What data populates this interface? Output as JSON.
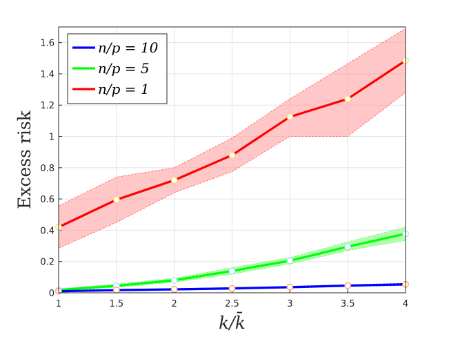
{
  "chart_data": {
    "type": "line",
    "xlabel": "k/k̄",
    "ylabel": "Excess risk",
    "xlim": [
      1,
      4
    ],
    "ylim": [
      0,
      1.7
    ],
    "xticks": [
      "1",
      "1.5",
      "2",
      "2.5",
      "3",
      "3.5",
      "4"
    ],
    "yticks": [
      "0",
      "0.2",
      "0.4",
      "0.6",
      "0.8",
      "1",
      "1.2",
      "1.4",
      "1.6"
    ],
    "grid": true,
    "legend_position": "top-left",
    "x": [
      1,
      1.5,
      2,
      2.5,
      3,
      3.5,
      4
    ],
    "series": [
      {
        "name": "n/p = 10",
        "color": "#0000ff",
        "values": [
          0.01,
          0.017,
          0.022,
          0.028,
          0.036,
          0.046,
          0.054
        ],
        "lower": [
          0.005,
          0.012,
          0.017,
          0.022,
          0.03,
          0.04,
          0.047
        ],
        "upper": [
          0.015,
          0.022,
          0.027,
          0.034,
          0.042,
          0.052,
          0.061
        ],
        "band_color": "#8080ff"
      },
      {
        "name": "n/p = 5",
        "color": "#00ff00",
        "values": [
          0.018,
          0.045,
          0.08,
          0.14,
          0.205,
          0.295,
          0.377
        ],
        "lower": [
          0.01,
          0.035,
          0.068,
          0.12,
          0.185,
          0.27,
          0.335
        ],
        "upper": [
          0.026,
          0.055,
          0.092,
          0.16,
          0.225,
          0.325,
          0.42
        ],
        "band_color": "#7fff7f"
      },
      {
        "name": "n/p = 1",
        "color": "#ff0000",
        "values": [
          0.42,
          0.595,
          0.72,
          0.88,
          1.125,
          1.24,
          1.485
        ],
        "lower": [
          0.285,
          0.45,
          0.64,
          0.775,
          1.0,
          1.0,
          1.28
        ],
        "upper": [
          0.555,
          0.74,
          0.8,
          0.99,
          1.24,
          1.465,
          1.69
        ],
        "band_color": "#ff9999"
      }
    ]
  }
}
